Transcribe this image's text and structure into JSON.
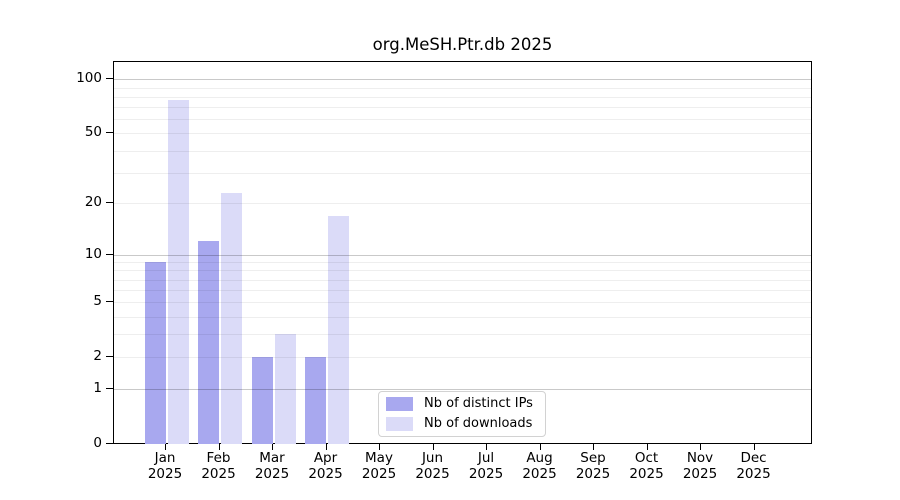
{
  "chart_data": {
    "type": "bar",
    "title": "org.MeSH.Ptr.db 2025",
    "xlabel": "",
    "ylabel": "",
    "scale": "log1p",
    "grid": true,
    "legend_position": "bottom-center-inside",
    "year": "2025",
    "categories": [
      "Jan",
      "Feb",
      "Mar",
      "Apr",
      "May",
      "Jun",
      "Jul",
      "Aug",
      "Sep",
      "Oct",
      "Nov",
      "Dec"
    ],
    "series": [
      {
        "name": "Nb of distinct IPs",
        "color": "#a8a8ef",
        "values": [
          9,
          12,
          2,
          2,
          0,
          0,
          0,
          0,
          0,
          0,
          0,
          0
        ]
      },
      {
        "name": "Nb of downloads",
        "color": "#dbdbf8",
        "values": [
          77,
          23,
          3,
          17,
          0,
          0,
          0,
          0,
          0,
          0,
          0,
          0
        ]
      }
    ],
    "yticks": [
      0,
      1,
      2,
      5,
      10,
      20,
      50,
      100
    ],
    "ylim": [
      0,
      100
    ],
    "gridlines_major": [
      1,
      10,
      100
    ],
    "gridlines_minor": [
      2,
      3,
      4,
      5,
      6,
      7,
      8,
      9,
      20,
      30,
      40,
      50,
      60,
      70,
      80,
      90
    ]
  },
  "colors": {
    "axis": "#000000",
    "grid_major": "rgba(0,0,0,0.21)",
    "grid_minor": "rgba(0,0,0,0.065)",
    "legend_border": "#d2d2d2",
    "background": "#ffffff"
  }
}
